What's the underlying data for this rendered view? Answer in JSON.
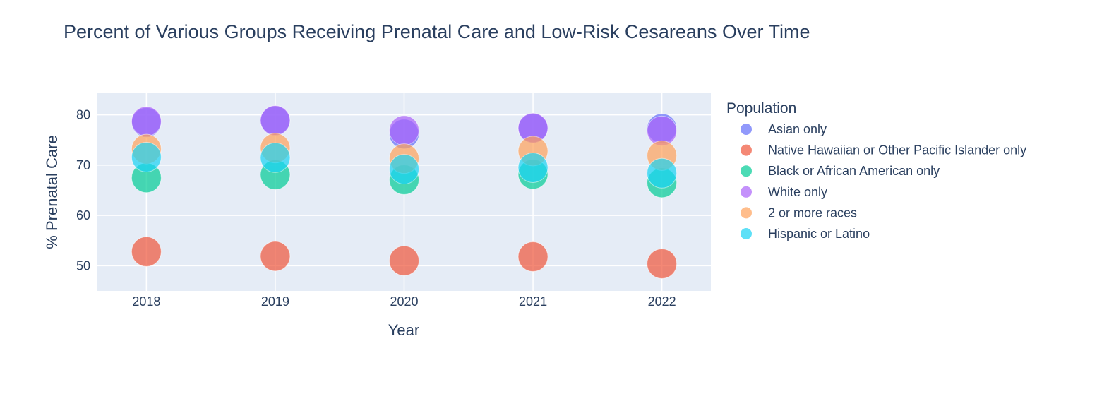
{
  "chart_data": {
    "type": "scatter",
    "title": "Percent of Various Groups Receiving Prenatal Care and Low-Risk Cesareans Over Time",
    "xlabel": "Year",
    "ylabel": "% Prenatal Care",
    "x": [
      2018,
      2019,
      2020,
      2021,
      2022
    ],
    "xticks": [
      "2018",
      "2019",
      "2020",
      "2021",
      "2022"
    ],
    "yticks": [
      50,
      60,
      70,
      80
    ],
    "ylim": [
      45,
      84.3
    ],
    "grid": true,
    "marker_size_note": "bubble size constant-looking",
    "legend": {
      "title": "Population",
      "position": "right"
    },
    "series": [
      {
        "name": "Asian only",
        "color": "#636efa",
        "values": [
          78.5,
          78.8,
          76.2,
          77.3,
          77.3
        ]
      },
      {
        "name": "Native Hawaiian or Other Pacific Islander only",
        "color": "#EF553B",
        "values": [
          52.8,
          51.9,
          51.0,
          51.8,
          50.4
        ]
      },
      {
        "name": "Black or African American only",
        "color": "#00cc96",
        "values": [
          67.5,
          68.1,
          67.1,
          68.2,
          66.5
        ]
      },
      {
        "name": "White only",
        "color": "#ab63fa",
        "values": [
          78.7,
          78.9,
          76.9,
          77.4,
          76.8
        ]
      },
      {
        "name": "2 or more races",
        "color": "#FFA15A",
        "values": [
          73.2,
          73.4,
          71.3,
          72.8,
          71.9
        ]
      },
      {
        "name": "Hispanic or Latino",
        "color": "#19d3f3",
        "values": [
          71.6,
          71.5,
          69.2,
          69.5,
          68.4
        ]
      }
    ]
  }
}
